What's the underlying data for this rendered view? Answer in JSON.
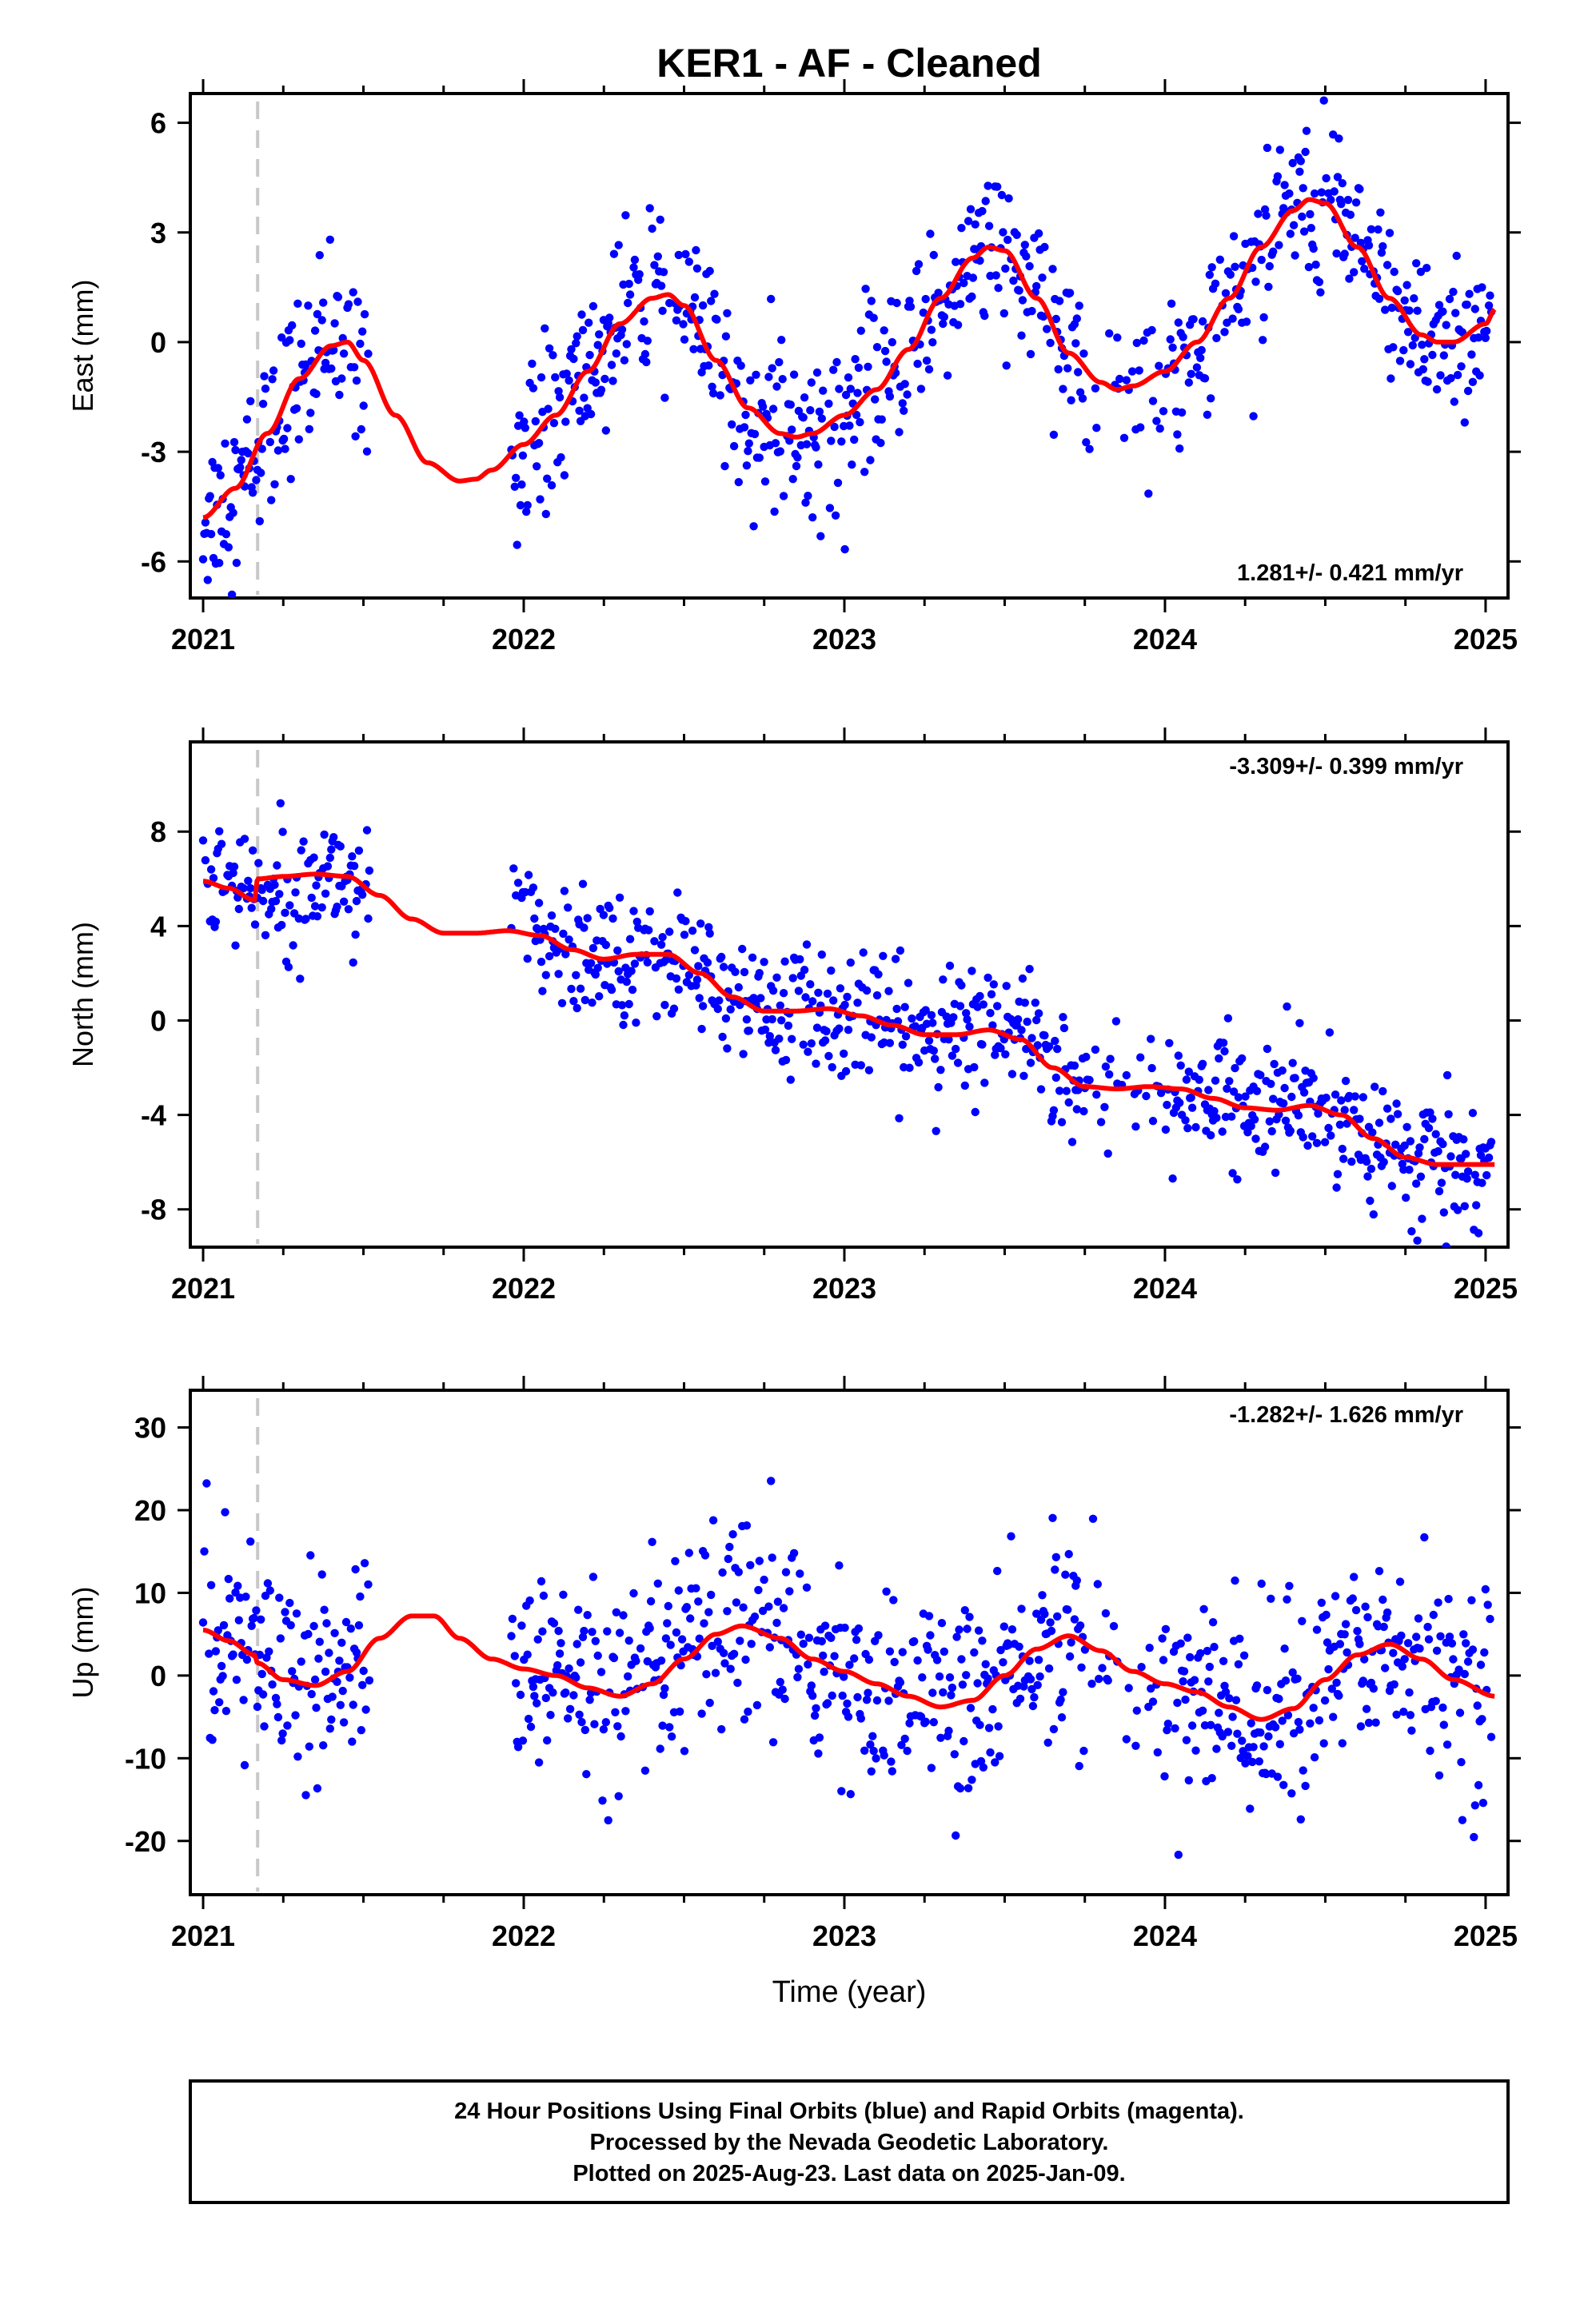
{
  "chart_data": {
    "title": "KER1  - AF - Cleaned",
    "type": "scatter",
    "xlabel": "Time (year)",
    "x_ticks": [
      2021,
      2022,
      2023,
      2024,
      2025
    ],
    "xlim": [
      2020.96,
      2025.07
    ],
    "marker_line_x": 2021.17,
    "colors": {
      "points": "#0000ff",
      "model": "#ff0000",
      "marker_line": "#c8c8c8",
      "frame": "#000000"
    },
    "panels": [
      {
        "ylabel": "East (mm)",
        "ylim": [
          -7.0,
          6.8
        ],
        "y_ticks": [
          6,
          3,
          0,
          -3,
          -6
        ],
        "rate_label": "1.281+/- 0.421 mm/yr",
        "rate_position": "bottom-right",
        "series": [
          {
            "kind": "model",
            "x": [
              2021.0,
              2021.1,
              2021.2,
              2021.3,
              2021.4,
              2021.45,
              2021.5,
              2021.6,
              2021.7,
              2021.8,
              2021.85,
              2021.9,
              2022.0,
              2022.1,
              2022.2,
              2022.3,
              2022.4,
              2022.45,
              2022.5,
              2022.6,
              2022.7,
              2022.8,
              2022.85,
              2022.9,
              2023.0,
              2023.1,
              2023.2,
              2023.3,
              2023.4,
              2023.45,
              2023.5,
              2023.6,
              2023.7,
              2023.8,
              2023.85,
              2023.9,
              2024.0,
              2024.1,
              2024.2,
              2024.3,
              2024.4,
              2024.45,
              2024.5,
              2024.6,
              2024.7,
              2024.8,
              2024.85,
              2024.9,
              2025.0,
              2025.03
            ],
            "y": [
              -4.8,
              -4.0,
              -2.5,
              -1.0,
              -0.1,
              0.0,
              -0.5,
              -2.0,
              -3.3,
              -3.8,
              -3.75,
              -3.5,
              -2.8,
              -2.0,
              -0.8,
              0.5,
              1.2,
              1.3,
              1.0,
              -0.5,
              -1.8,
              -2.5,
              -2.6,
              -2.5,
              -2.0,
              -1.3,
              -0.2,
              1.2,
              2.3,
              2.6,
              2.5,
              1.2,
              -0.3,
              -1.1,
              -1.3,
              -1.2,
              -0.8,
              0.0,
              1.2,
              2.6,
              3.6,
              3.9,
              3.8,
              2.6,
              1.2,
              0.2,
              0.0,
              0.0,
              0.5,
              0.9
            ]
          }
        ]
      },
      {
        "ylabel": "North (mm)",
        "ylim": [
          -9.6,
          11.8
        ],
        "y_ticks": [
          8,
          4,
          0,
          -4,
          -8
        ],
        "rate_label": "-3.309+/- 0.399 mm/yr",
        "rate_position": "top-right",
        "series": [
          {
            "kind": "model",
            "x": [
              2021.0,
              2021.08,
              2021.16,
              2021.17,
              2021.25,
              2021.35,
              2021.45,
              2021.55,
              2021.65,
              2021.75,
              2021.85,
              2021.95,
              2022.05,
              2022.15,
              2022.25,
              2022.35,
              2022.45,
              2022.55,
              2022.65,
              2022.75,
              2022.85,
              2022.95,
              2023.05,
              2023.15,
              2023.25,
              2023.35,
              2023.45,
              2023.55,
              2023.65,
              2023.75,
              2023.85,
              2023.95,
              2024.05,
              2024.15,
              2024.25,
              2024.35,
              2024.45,
              2024.55,
              2024.65,
              2024.75,
              2024.85,
              2024.95,
              2025.03
            ],
            "y": [
              5.9,
              5.6,
              5.1,
              6.0,
              6.1,
              6.2,
              6.1,
              5.3,
              4.3,
              3.7,
              3.7,
              3.8,
              3.6,
              3.0,
              2.6,
              2.8,
              2.8,
              2.0,
              1.0,
              0.4,
              0.4,
              0.5,
              0.2,
              -0.2,
              -0.6,
              -0.6,
              -0.4,
              -0.8,
              -2.0,
              -2.8,
              -2.9,
              -2.8,
              -2.9,
              -3.3,
              -3.7,
              -3.8,
              -3.6,
              -4.0,
              -5.0,
              -5.8,
              -6.1,
              -6.1,
              -6.1
            ]
          }
        ]
      },
      {
        "ylabel": "Up (mm)",
        "ylim": [
          -26.5,
          34.5
        ],
        "y_ticks": [
          30,
          20,
          10,
          0,
          -10,
          -20
        ],
        "rate_label": "-1.282+/- 1.626 mm/yr",
        "rate_position": "top-right",
        "series": [
          {
            "kind": "model",
            "x": [
              2021.0,
              2021.08,
              2021.16,
              2021.17,
              2021.25,
              2021.35,
              2021.45,
              2021.55,
              2021.65,
              2021.72,
              2021.8,
              2021.9,
              2022.0,
              2022.1,
              2022.2,
              2022.3,
              2022.4,
              2022.5,
              2022.6,
              2022.68,
              2022.8,
              2022.9,
              2023.0,
              2023.1,
              2023.2,
              2023.3,
              2023.4,
              2023.5,
              2023.6,
              2023.7,
              2023.8,
              2023.9,
              2024.0,
              2024.1,
              2024.2,
              2024.3,
              2024.4,
              2024.5,
              2024.6,
              2024.7,
              2024.8,
              2024.9,
              2025.03
            ],
            "y": [
              5.5,
              4.2,
              2.5,
              1.5,
              -0.5,
              -1.2,
              0.5,
              4.5,
              7.2,
              7.2,
              4.5,
              2.0,
              0.8,
              0.0,
              -1.5,
              -2.5,
              -1.0,
              2.0,
              5.0,
              6.0,
              4.5,
              2.0,
              0.5,
              -1.0,
              -2.5,
              -3.8,
              -3.0,
              0.0,
              3.2,
              4.8,
              3.0,
              0.5,
              -1.0,
              -2.0,
              -3.8,
              -5.3,
              -4.0,
              -0.5,
              2.5,
              3.8,
              2.0,
              -0.5,
              -2.5
            ]
          }
        ]
      }
    ]
  },
  "footer": {
    "line1": "24 Hour Positions Using Final Orbits (blue) and Rapid Orbits (magenta).",
    "line2": "Processed by the Nevada Geodetic Laboratory.",
    "line3": "Plotted on 2025-Aug-23. Last data on 2025-Jan-09."
  }
}
